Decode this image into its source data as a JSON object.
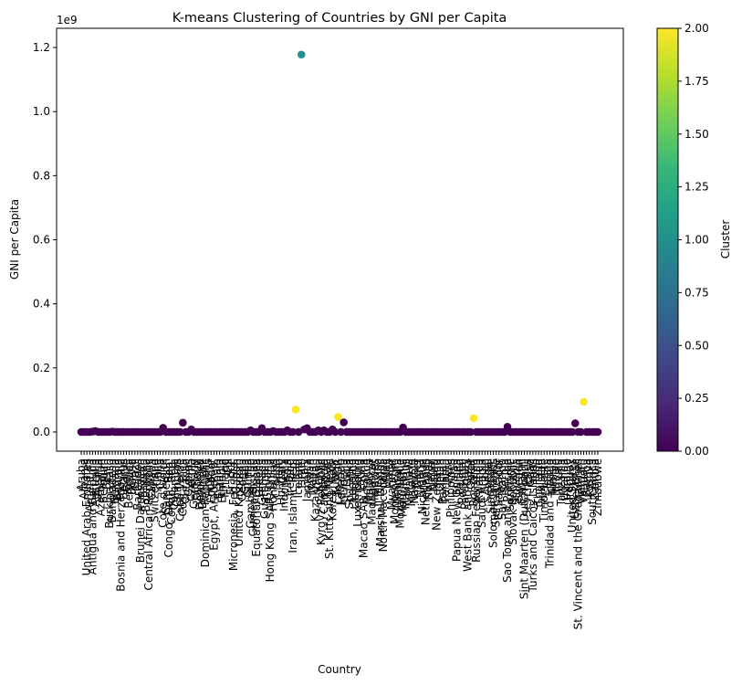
{
  "chart_data": {
    "type": "scatter",
    "title": "K-means Clustering of Countries by GNI per Capita",
    "xlabel": "Country",
    "ylabel": "GNI per Capita",
    "y_offset_text": "1e9",
    "y_scale": 1000000000,
    "ylim": [
      -0.06,
      1.26
    ],
    "yticks": [
      0.0,
      0.2,
      0.4,
      0.6,
      0.8,
      1.0,
      1.2
    ],
    "ytick_labels": [
      "0.0",
      "0.2",
      "0.4",
      "0.6",
      "0.8",
      "1.0",
      "1.2"
    ],
    "colorbar": {
      "label": "Cluster",
      "range": [
        0,
        2
      ],
      "ticks": [
        0.0,
        0.25,
        0.5,
        0.75,
        1.0,
        1.25,
        1.5,
        1.75,
        2.0
      ],
      "tick_labels": [
        "0.00",
        "0.25",
        "0.50",
        "0.75",
        "1.00",
        "1.25",
        "1.50",
        "1.75",
        "2.00"
      ],
      "colormap": [
        "#440154",
        "#482878",
        "#3e4989",
        "#31688e",
        "#26828e",
        "#1f9e89",
        "#35b779",
        "#6ece58",
        "#b5de2b",
        "#fde725"
      ]
    },
    "categories": [
      "Aruba",
      "Albania",
      "United Arab Emirates",
      "Argentina",
      "Antigua and Barbuda",
      "Australia",
      "Austria",
      "Azerbaijan",
      "Belgium",
      "Benin",
      "Burkina Faso",
      "Bangladesh",
      "Bulgaria",
      "Bahrain",
      "Bosnia and Herzegovina",
      "Belarus",
      "Belize",
      "Bermuda",
      "Bolivia",
      "Brazil",
      "Barbados",
      "Brunei Darussalam",
      "Bhutan",
      "Botswana",
      "Central African Republic",
      "Canada",
      "Switzerland",
      "Chile",
      "China",
      "Cote d'Ivoire",
      "Cameroon",
      "Congo, Dem. Rep.",
      "Congo, Rep.",
      "Colombia",
      "Comoros",
      "Cabo Verde",
      "Costa Rica",
      "Curacao",
      "Cyprus",
      "Czechia",
      "Germany",
      "Djibouti",
      "Dominica",
      "Denmark",
      "Dominican Republic",
      "Algeria",
      "Ecuador",
      "Egypt, Arab Rep.",
      "Spain",
      "Estonia",
      "Ethiopia",
      "Finland",
      "Fiji",
      "France",
      "Micronesia, Fed. Sts.",
      "Gabon",
      "United Kingdom",
      "Georgia",
      "Ghana",
      "Guinea",
      "Gambia, The",
      "Guinea-Bissau",
      "Equatorial Guinea",
      "Greece",
      "Grenada",
      "Guatemala",
      "Guyana",
      "Hong Kong SAR, China",
      "Honduras",
      "Croatia",
      "Haiti",
      "Hungary",
      "Indonesia",
      "India",
      "Ireland",
      "Iran, Islamic Rep.",
      "Iraq",
      "Iceland",
      "Israel",
      "Italy",
      "Jamaica",
      "Jordan",
      "Japan",
      "Kazakhstan",
      "Kenya",
      "Kyrgyz Republic",
      "Cambodia",
      "Kiribati",
      "St. Kitts and Nevis",
      "Korea, Rep.",
      "Kuwait",
      "Lao PDR",
      "Lebanon",
      "Liberia",
      "St. Lucia",
      "Sri Lanka",
      "Lesotho",
      "Lithuania",
      "Luxembourg",
      "Latvia",
      "Macao SAR, China",
      "Morocco",
      "Moldova",
      "Madagascar",
      "Maldives",
      "Mexico",
      "Marshall Islands",
      "North Macedonia",
      "Mali",
      "Malta",
      "Myanmar",
      "Montenegro",
      "Mongolia",
      "Mozambique",
      "Mauritania",
      "Mauritius",
      "Malawi",
      "Malaysia",
      "Namibia",
      "Niger",
      "Nigeria",
      "Nicaragua",
      "Netherlands",
      "Norway",
      "Nepal",
      "Nauru",
      "New Zealand",
      "Oman",
      "Pakistan",
      "Panama",
      "Peru",
      "Philippines",
      "Palau",
      "Papua New Guinea",
      "Poland",
      "Portugal",
      "Paraguay",
      "West Bank and Gaza",
      "Qatar",
      "Romania",
      "Russian Federation",
      "Rwanda",
      "Saudi Arabia",
      "Sudan",
      "Senegal",
      "Singapore",
      "Solomon Islands",
      "Sierra Leone",
      "El Salvador",
      "San Marino",
      "Serbia",
      "Sao Tome and Principe",
      "Suriname",
      "Slovak Republic",
      "Slovenia",
      "Sweden",
      "Eswatini",
      "Sint Maarten (Dutch part)",
      "Seychelles",
      "Chad",
      "Turks and Caicos Islands",
      "Togo",
      "Thailand",
      "Tajikistan",
      "Timor-Leste",
      "Tonga",
      "Trinidad and Tobago",
      "Tunisia",
      "Turkiye",
      "Tuvalu",
      "Tanzania",
      "Uganda",
      "Ukraine",
      "Uruguay",
      "United States",
      "Uzbekistan",
      "St. Vincent and the Grenadines",
      "Vietnam",
      "Vanuatu",
      "Samoa",
      "Kosovo",
      "South Africa",
      "Zambia",
      "Zimbabwe"
    ],
    "values": [
      0.0,
      0.0,
      0.0,
      0.0,
      0.001,
      0.003,
      0.0,
      0.0,
      0.0,
      0.0,
      0.0,
      0.001,
      0.0,
      0.0,
      0.0,
      0.0,
      0.0,
      0.0,
      0.0,
      0.0,
      0.0,
      0.0,
      0.0,
      0.0,
      0.0,
      0.0,
      0.0,
      0.0,
      0.0,
      0.013,
      0.0,
      0.0,
      0.0,
      0.0,
      0.0,
      0.0,
      0.029,
      0.0,
      0.0,
      0.008,
      0.0,
      0.0,
      0.0,
      0.0,
      0.0,
      0.0,
      0.0,
      0.0,
      0.0,
      0.0,
      0.0,
      0.0,
      0.0,
      0.0,
      0.0,
      0.0,
      0.0,
      0.0,
      0.0,
      0.0,
      0.005,
      0.0,
      0.0,
      0.0,
      0.012,
      0.0,
      0.0,
      0.0,
      0.003,
      0.0,
      0.0,
      0.0,
      0.0,
      0.005,
      0.0,
      0.0,
      0.07,
      0.0,
      1.178,
      0.008,
      0.012,
      0.0,
      0.0,
      0.0,
      0.005,
      0.0,
      0.005,
      0.0,
      0.0,
      0.008,
      0.0,
      0.047,
      0.0,
      0.03,
      0.0,
      0.0,
      0.0,
      0.0,
      0.0,
      0.0,
      0.0,
      0.0,
      0.0,
      0.0,
      0.0,
      0.0,
      0.0,
      0.0,
      0.0,
      0.0,
      0.0,
      0.0,
      0.0,
      0.0,
      0.014,
      0.0,
      0.0,
      0.0,
      0.0,
      0.0,
      0.0,
      0.0,
      0.0,
      0.0,
      0.0,
      0.0,
      0.0,
      0.0,
      0.0,
      0.0,
      0.0,
      0.0,
      0.0,
      0.0,
      0.0,
      0.0,
      0.0,
      0.0,
      0.0,
      0.043,
      0.0,
      0.0,
      0.0,
      0.0,
      0.0,
      0.0,
      0.0,
      0.0,
      0.0,
      0.0,
      0.0,
      0.016,
      0.0,
      0.0,
      0.0,
      0.0,
      0.0,
      0.0,
      0.0,
      0.0,
      0.0,
      0.0,
      0.0,
      0.0,
      0.0,
      0.0,
      0.0,
      0.0,
      0.0,
      0.0,
      0.0,
      0.0,
      0.0,
      0.0,
      0.0,
      0.027,
      0.0,
      0.0,
      0.094,
      0.0,
      0.0,
      0.0,
      0.0,
      0.0
    ],
    "clusters": [
      0,
      0,
      0,
      0,
      0,
      0,
      0,
      0,
      0,
      0,
      0,
      0,
      0,
      0,
      0,
      0,
      0,
      0,
      0,
      0,
      0,
      0,
      0,
      0,
      0,
      0,
      0,
      0,
      0,
      0,
      0,
      0,
      0,
      0,
      0,
      0,
      0,
      0,
      0,
      0,
      0,
      0,
      0,
      0,
      0,
      0,
      0,
      0,
      0,
      0,
      0,
      0,
      0,
      0,
      0,
      0,
      0,
      0,
      0,
      0,
      0,
      0,
      0,
      0,
      0,
      0,
      0,
      0,
      0,
      0,
      0,
      0,
      0,
      0,
      0,
      0,
      2,
      0,
      1,
      0,
      0,
      0,
      0,
      0,
      0,
      0,
      0,
      0,
      0,
      0,
      0,
      2,
      0,
      0,
      0,
      0,
      0,
      0,
      0,
      0,
      0,
      0,
      0,
      0,
      0,
      0,
      0,
      0,
      0,
      0,
      0,
      0,
      0,
      0,
      0,
      0,
      0,
      0,
      0,
      0,
      0,
      0,
      0,
      0,
      0,
      0,
      0,
      0,
      0,
      0,
      0,
      0,
      0,
      0,
      0,
      0,
      0,
      0,
      0,
      2,
      0,
      0,
      0,
      0,
      0,
      0,
      0,
      0,
      0,
      0,
      0,
      0,
      0,
      0,
      0,
      0,
      0,
      0,
      0,
      0,
      0,
      0,
      0,
      0,
      0,
      0,
      0,
      0,
      0,
      0,
      0,
      0,
      0,
      0,
      0,
      0,
      0,
      0,
      2,
      0,
      0,
      0,
      0,
      0
    ]
  }
}
